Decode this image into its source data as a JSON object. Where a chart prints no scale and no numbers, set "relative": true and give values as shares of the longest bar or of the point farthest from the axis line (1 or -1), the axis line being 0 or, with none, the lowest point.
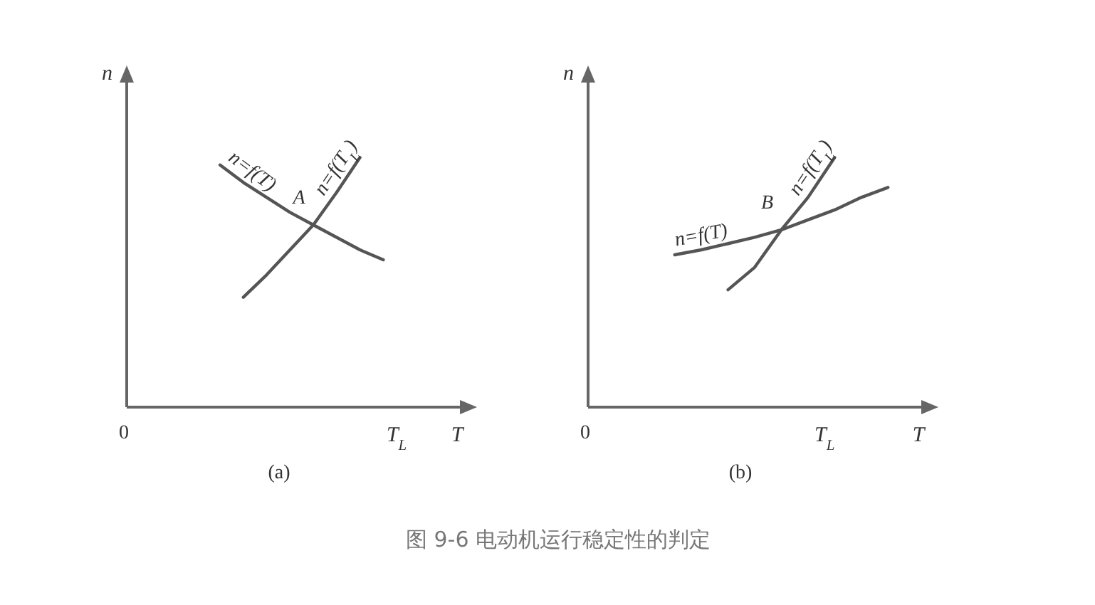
{
  "chart_data": [
    {
      "type": "line",
      "relative": true,
      "ylabel": "n",
      "xlabel": "T",
      "line_style": "solid",
      "marker": "none",
      "categories": [
        null,
        null,
        null,
        null,
        null,
        null,
        null,
        null
      ],
      "series": [
        {
          "name": "n=f(T)",
          "color": "#555555",
          "values": [
            0.97,
            0.9,
            0.84,
            0.78,
            0.73,
            0.68,
            0.63,
            0.59
          ]
        },
        {
          "name": "n=f(T$_{L}$)",
          "color": "#555555",
          "values": [
            null,
            0.44,
            0.53,
            0.63,
            0.73,
            0.86,
            1.0,
            null
          ]
        }
      ],
      "annotations": [
        "(a)",
        "0",
        "A",
        "T$_{L}$"
      ]
    },
    {
      "type": "line",
      "relative": true,
      "ylabel": "n",
      "xlabel": "T",
      "line_style": "solid",
      "marker": "none",
      "categories": [
        null,
        null,
        null,
        null,
        null,
        null,
        null,
        null,
        null
      ],
      "series": [
        {
          "name": "n=f(T)",
          "color": "#555555",
          "values": [
            0.61,
            0.63,
            0.655,
            0.68,
            0.71,
            0.75,
            0.79,
            0.84,
            0.88
          ]
        },
        {
          "name": "n=f(T$_{L}$)",
          "color": "#555555",
          "values": [
            null,
            null,
            0.47,
            0.56,
            0.71,
            0.84,
            1.0,
            null,
            null
          ]
        }
      ],
      "annotations": [
        "(b)",
        "0",
        "B",
        "T$_{L}$",
        "图 9-6  电动机运行稳定性的判定"
      ]
    }
  ]
}
